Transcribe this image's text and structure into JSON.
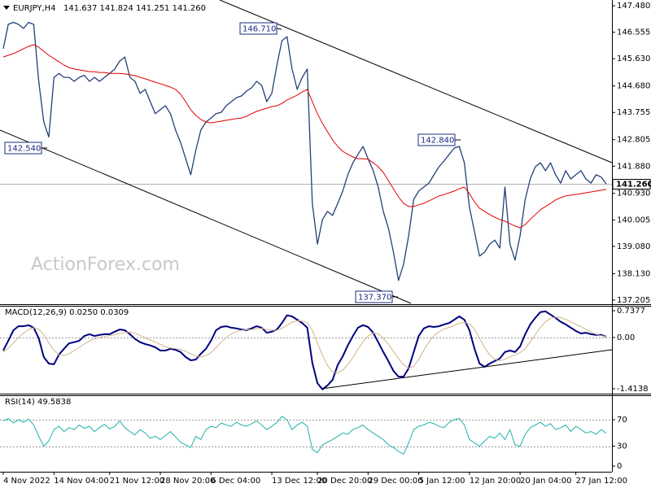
{
  "chart_data": [
    {
      "type": "line",
      "title": "EURJPY,H4",
      "subtitle": "141.637 141.824 141.251 141.260",
      "watermark": "ActionForex.com",
      "categories": [
        "4 Nov 2022",
        null,
        null,
        null,
        null,
        null,
        null,
        null,
        null,
        null,
        "14 Nov 04:00",
        null,
        null,
        null,
        null,
        null,
        null,
        null,
        null,
        null,
        null,
        "21 Nov 12:00",
        null,
        null,
        null,
        null,
        null,
        null,
        null,
        null,
        null,
        "28 Nov 20:00",
        null,
        null,
        null,
        null,
        null,
        null,
        null,
        null,
        null,
        "6 Dec 04:00",
        null,
        null,
        null,
        null,
        null,
        null,
        null,
        null,
        null,
        null,
        null,
        "13 Dec 12:00",
        null,
        null,
        null,
        null,
        null,
        null,
        null,
        null,
        "20 Dec 20:00",
        null,
        null,
        null,
        null,
        null,
        null,
        null,
        null,
        null,
        "29 Dec 00:00",
        null,
        null,
        null,
        null,
        null,
        null,
        null,
        null,
        null,
        "5 Jan 12:00",
        null,
        null,
        null,
        null,
        null,
        null,
        null,
        null,
        null,
        "12 Jan 20:00",
        null,
        null,
        null,
        null,
        null,
        null,
        null,
        null,
        null,
        "20 Jan 04:00",
        null,
        null,
        null,
        null,
        null,
        null,
        null,
        null,
        null,
        null,
        "27 Jan 12:00",
        null,
        null,
        null,
        null,
        null,
        null
      ],
      "series": [
        {
          "color": "#24407a",
          "values": [
            145.98,
            146.83,
            146.9,
            146.83,
            146.69,
            146.9,
            146.83,
            144.84,
            143.42,
            142.9,
            144.98,
            145.12,
            144.98,
            144.98,
            144.84,
            144.98,
            145.05,
            144.84,
            144.98,
            144.84,
            144.98,
            145.12,
            145.27,
            145.55,
            145.69,
            144.98,
            144.84,
            144.42,
            144.56,
            144.13,
            143.71,
            143.85,
            143.99,
            143.71,
            143.14,
            142.71,
            142.14,
            141.58,
            142.43,
            143.14,
            143.42,
            143.56,
            143.71,
            143.76,
            143.99,
            144.13,
            144.27,
            144.33,
            144.5,
            144.61,
            144.84,
            144.7,
            144.13,
            144.42,
            145.41,
            146.26,
            146.4,
            145.27,
            144.56,
            144.98,
            145.27,
            140.58,
            139.16,
            140.02,
            140.3,
            140.16,
            140.58,
            141.01,
            141.58,
            142.0,
            142.29,
            142.57,
            142.14,
            141.72,
            141.15,
            140.3,
            139.73,
            138.88,
            137.89,
            138.45,
            139.45,
            140.72,
            141.01,
            141.15,
            141.29,
            141.58,
            141.86,
            142.06,
            142.29,
            142.51,
            142.57,
            142.0,
            140.44,
            139.59,
            138.74,
            138.88,
            139.16,
            139.3,
            139.02,
            141.15,
            139.16,
            138.6,
            139.45,
            140.72,
            141.43,
            141.86,
            142.0,
            141.72,
            142.0,
            141.58,
            141.29,
            141.72,
            141.43,
            141.58,
            141.72,
            141.43,
            141.29,
            141.58,
            141.5,
            141.26
          ]
        },
        {
          "color": "#e00000",
          "values": [
            145.69,
            145.75,
            145.81,
            145.89,
            145.98,
            146.06,
            146.12,
            146.03,
            145.89,
            145.75,
            145.64,
            145.52,
            145.41,
            145.32,
            145.27,
            145.24,
            145.21,
            145.18,
            145.18,
            145.15,
            145.15,
            145.12,
            145.12,
            145.12,
            145.1,
            145.07,
            145.04,
            144.98,
            144.93,
            144.87,
            144.81,
            144.76,
            144.7,
            144.64,
            144.56,
            144.39,
            144.13,
            143.85,
            143.65,
            143.51,
            143.42,
            143.39,
            143.42,
            143.45,
            143.48,
            143.51,
            143.54,
            143.56,
            143.62,
            143.71,
            143.79,
            143.85,
            143.9,
            143.96,
            143.99,
            144.07,
            144.19,
            144.27,
            144.36,
            144.47,
            144.56,
            144.13,
            143.71,
            143.37,
            143.08,
            142.8,
            142.57,
            142.4,
            142.29,
            142.2,
            142.14,
            142.14,
            142.12,
            142.0,
            141.86,
            141.66,
            141.38,
            141.09,
            140.81,
            140.58,
            140.47,
            140.47,
            140.53,
            140.58,
            140.67,
            140.75,
            140.84,
            140.89,
            140.95,
            141.01,
            141.09,
            141.15,
            140.92,
            140.64,
            140.41,
            140.3,
            140.19,
            140.1,
            140.02,
            139.96,
            139.87,
            139.79,
            139.73,
            139.84,
            140.02,
            140.19,
            140.36,
            140.47,
            140.58,
            140.7,
            140.78,
            140.84,
            140.87,
            140.89,
            140.92,
            140.95,
            140.98,
            141.01,
            141.04,
            141.07
          ]
        }
      ],
      "ylim": [
        137.09,
        147.68
      ],
      "yticks": [
        {
          "value": 147.48,
          "label": "147.480"
        },
        146.555,
        {
          "value": 145.63,
          "label": "145.630"
        },
        {
          "value": 144.68,
          "label": "144.680"
        },
        143.755,
        142.805,
        {
          "value": 141.88,
          "label": "141.880"
        },
        {
          "value": 140.93,
          "label": "140.930"
        },
        140.005,
        {
          "value": 139.08,
          "label": "139.080"
        },
        {
          "value": 138.13,
          "label": "138.130"
        },
        137.205
      ],
      "current_price": {
        "value": 141.26,
        "label": "141.260"
      },
      "annotations": [
        {
          "label": "146.710"
        },
        {
          "label": "142.540"
        },
        {
          "label": "142.840"
        },
        {
          "label": "137.370"
        }
      ]
    },
    {
      "type": "line",
      "title": "MACD(12,26,9) 0.0250 0.0309",
      "series": [
        {
          "color": "#000080",
          "values": [
            -0.36,
            -0.09,
            0.2,
            0.31,
            0.31,
            0.34,
            0.27,
            -0.02,
            -0.54,
            -0.72,
            -0.74,
            -0.47,
            -0.31,
            -0.16,
            -0.13,
            -0.09,
            0.04,
            0.09,
            0.04,
            0.07,
            0.09,
            0.09,
            0.16,
            0.22,
            0.2,
            0.09,
            -0.04,
            -0.13,
            -0.18,
            -0.22,
            -0.27,
            -0.36,
            -0.36,
            -0.31,
            -0.34,
            -0.4,
            -0.54,
            -0.63,
            -0.61,
            -0.45,
            -0.31,
            -0.09,
            0.2,
            0.29,
            0.31,
            0.27,
            0.25,
            0.22,
            0.2,
            0.25,
            0.31,
            0.27,
            0.13,
            0.16,
            0.22,
            0.4,
            0.61,
            0.58,
            0.49,
            0.4,
            0.27,
            -0.7,
            -1.26,
            -1.43,
            -1.32,
            -1.17,
            -0.76,
            -0.52,
            -0.22,
            0.04,
            0.27,
            0.34,
            0.29,
            0.13,
            -0.13,
            -0.4,
            -0.65,
            -0.92,
            -1.08,
            -1.08,
            -0.85,
            -0.4,
            0.04,
            0.25,
            0.31,
            0.29,
            0.31,
            0.36,
            0.4,
            0.49,
            0.58,
            0.49,
            0.2,
            -0.31,
            -0.72,
            -0.81,
            -0.72,
            -0.65,
            -0.58,
            -0.4,
            -0.36,
            -0.4,
            -0.25,
            0.09,
            0.36,
            0.54,
            0.7,
            0.72,
            0.63,
            0.54,
            0.43,
            0.36,
            0.27,
            0.18,
            0.11,
            0.13,
            0.09,
            0.07,
            0.07,
            0.025
          ]
        },
        {
          "color": "#d2b48c",
          "values": [
            -0.4,
            -0.3,
            -0.15,
            0.0,
            0.12,
            0.22,
            0.27,
            0.22,
            0.08,
            -0.15,
            -0.35,
            -0.48,
            -0.5,
            -0.45,
            -0.36,
            -0.27,
            -0.18,
            -0.1,
            -0.04,
            0.0,
            0.03,
            0.05,
            0.08,
            0.11,
            0.14,
            0.15,
            0.12,
            0.06,
            -0.01,
            -0.07,
            -0.13,
            -0.19,
            -0.25,
            -0.29,
            -0.31,
            -0.33,
            -0.38,
            -0.45,
            -0.51,
            -0.53,
            -0.5,
            -0.42,
            -0.28,
            -0.13,
            0.0,
            0.1,
            0.16,
            0.2,
            0.21,
            0.22,
            0.24,
            0.25,
            0.22,
            0.2,
            0.2,
            0.25,
            0.34,
            0.42,
            0.46,
            0.45,
            0.42,
            0.2,
            -0.15,
            -0.5,
            -0.78,
            -0.95,
            -0.98,
            -0.9,
            -0.75,
            -0.55,
            -0.32,
            -0.12,
            0.04,
            0.12,
            0.1,
            -0.02,
            -0.18,
            -0.38,
            -0.58,
            -0.75,
            -0.85,
            -0.8,
            -0.6,
            -0.35,
            -0.12,
            0.05,
            0.16,
            0.23,
            0.28,
            0.33,
            0.39,
            0.42,
            0.38,
            0.22,
            -0.02,
            -0.28,
            -0.48,
            -0.6,
            -0.64,
            -0.6,
            -0.53,
            -0.48,
            -0.42,
            -0.3,
            -0.12,
            0.08,
            0.28,
            0.43,
            0.53,
            0.56,
            0.55,
            0.5,
            0.43,
            0.36,
            0.3,
            0.22,
            0.15,
            0.09,
            0.05,
            0.0309
          ]
        }
      ],
      "ylim": [
        -1.526,
        0.85
      ],
      "yticks": [
        -1.4138,
        {
          "value": 0,
          "label": "0.00"
        },
        0.7377
      ],
      "levels": [
        0
      ]
    },
    {
      "type": "line",
      "title": "RSI(14) 49.5838",
      "series": [
        {
          "color": "#20b2aa",
          "values": [
            68,
            72,
            65,
            70,
            66,
            71,
            62,
            45,
            30,
            38,
            55,
            60,
            52,
            58,
            55,
            62,
            57,
            60,
            52,
            58,
            63,
            56,
            60,
            68,
            58,
            52,
            47,
            55,
            50,
            42,
            45,
            40,
            46,
            52,
            44,
            36,
            32,
            28,
            45,
            40,
            55,
            60,
            58,
            65,
            62,
            60,
            66,
            62,
            60,
            64,
            68,
            62,
            55,
            60,
            66,
            75,
            70,
            55,
            62,
            66,
            60,
            25,
            20,
            32,
            36,
            40,
            45,
            50,
            48,
            55,
            58,
            62,
            55,
            50,
            45,
            40,
            32,
            28,
            22,
            18,
            35,
            55,
            60,
            62,
            66,
            64,
            60,
            58,
            66,
            70,
            72,
            62,
            40,
            35,
            30,
            38,
            45,
            42,
            50,
            40,
            55,
            32,
            30,
            48,
            58,
            62,
            66,
            60,
            64,
            55,
            58,
            62,
            52,
            60,
            55,
            50,
            52,
            48,
            55,
            49.5838
          ]
        }
      ],
      "ylim": [
        -8.6,
        105.6
      ],
      "yticks": [
        0,
        30,
        70
      ],
      "levels": [
        30,
        70
      ]
    }
  ]
}
